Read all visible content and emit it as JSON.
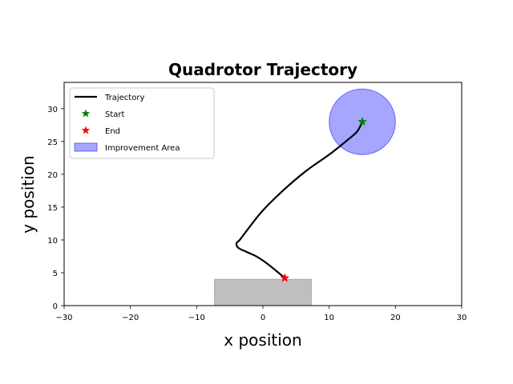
{
  "chart_data": {
    "type": "line",
    "title": "Quadrotor Trajectory",
    "xlabel": "x position",
    "ylabel": "y position",
    "xlim": [
      -30,
      30
    ],
    "ylim": [
      0,
      34
    ],
    "xticks": [
      "−30",
      "−20",
      "−10",
      "0",
      "10",
      "20",
      "30"
    ],
    "yticks": [
      "0",
      "5",
      "10",
      "15",
      "20",
      "25",
      "30"
    ],
    "grid": false,
    "legend_position": "top-left",
    "series": [
      {
        "name": "Trajectory",
        "color": "#000000",
        "x": [
          15,
          14.2,
          12.5,
          10.0,
          6.5,
          3.0,
          0.0,
          -2.0,
          -3.5,
          -4.0,
          -3.7,
          -2.5,
          -1.0,
          0.5,
          2.0,
          3.3
        ],
        "y": [
          28,
          26.5,
          25.0,
          23.0,
          20.5,
          17.5,
          14.5,
          12.0,
          10.0,
          9.5,
          8.8,
          8.2,
          7.5,
          6.5,
          5.3,
          4.2
        ]
      }
    ],
    "markers": [
      {
        "name": "Start",
        "x": 15,
        "y": 28,
        "color": "#008000",
        "symbol": "star"
      },
      {
        "name": "End",
        "x": 3.3,
        "y": 4.2,
        "color": "#ff0000",
        "symbol": "star"
      }
    ],
    "regions": [
      {
        "name": "Improvement Area",
        "shape": "circle",
        "center": [
          15,
          28
        ],
        "radius": 5,
        "color": "#0000ff",
        "opacity": 0.35
      },
      {
        "name": "",
        "shape": "rect",
        "x": [
          -7.3,
          7.3
        ],
        "y": [
          0,
          4
        ],
        "color": "#808080",
        "opacity": 0.5
      }
    ]
  }
}
